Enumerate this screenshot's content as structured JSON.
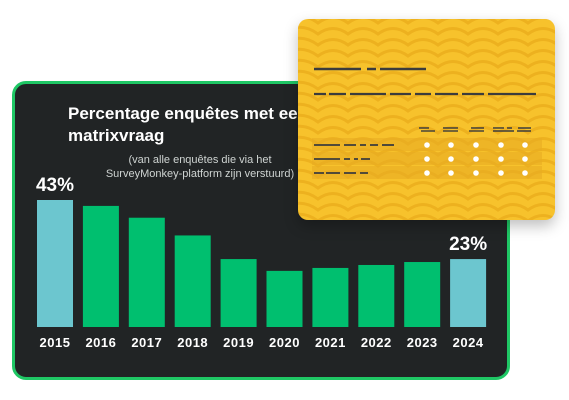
{
  "chart_data": {
    "type": "bar",
    "title": "Percentage enquêtes met een matrixvraag",
    "subtitle": "(van alle enquêtes die via het SurveyMonkey-platform zijn verstuurd)",
    "categories": [
      "2015",
      "2016",
      "2017",
      "2018",
      "2019",
      "2020",
      "2021",
      "2022",
      "2023",
      "2024"
    ],
    "values": [
      43,
      41,
      37,
      31,
      23,
      19,
      20,
      21,
      22,
      23
    ],
    "value_labels": [
      {
        "text": "43%"
      },
      {
        "text": "23%"
      }
    ],
    "highlight_indices": [
      0,
      9
    ],
    "colors": {
      "bar": "#00bf6f",
      "highlight": "#6cc6cf",
      "background": "#212425",
      "border": "#1fc765",
      "text": "#ffffff"
    },
    "ylim": [
      0,
      46
    ],
    "grid": false,
    "legend": "none"
  },
  "decoration": {
    "card_color": "#f7c22c",
    "wave_color": "#edb11f",
    "line_color": "#3c3c3c",
    "dot_color": "#ffffff",
    "icon": "survey-matrix-illustration"
  }
}
